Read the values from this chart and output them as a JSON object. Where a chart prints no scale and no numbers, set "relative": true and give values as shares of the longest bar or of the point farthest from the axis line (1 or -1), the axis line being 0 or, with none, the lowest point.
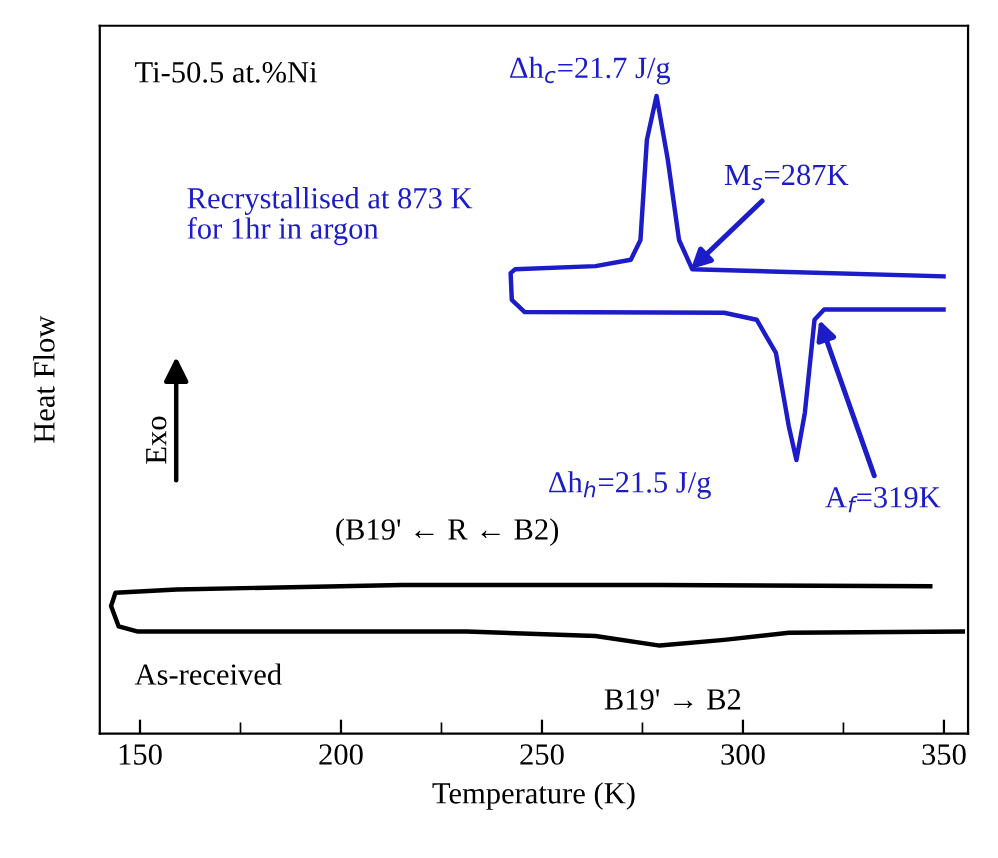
{
  "chart_data": {
    "type": "line",
    "title": "Ti-50.5 at.%Ni",
    "xlabel": "Temperature (K)",
    "ylabel": "Heat Flow",
    "relative": true,
    "xlim": [
      140,
      356
    ],
    "xticks": [
      150,
      {
        "value": 175,
        "label": null
      },
      200,
      {
        "value": 225,
        "label": null
      },
      250,
      {
        "value": 275,
        "label": null
      },
      300,
      {
        "value": 325,
        "label": null
      },
      350
    ],
    "tick_labels": "x",
    "grid": false,
    "legend": false,
    "marker": "none",
    "line_style": "solid",
    "series": [
      {
        "name": "Recrystallised at 873 K\nfor 1hr in argon",
        "color": "#1c1cc8",
        "x": [
          349.9,
          287.4,
          284.1,
          281.3,
          278.5,
          276.1,
          274.5,
          272.1,
          263.3,
          243.3,
          242.2,
          242.5,
          245.7,
          295.3,
          303.4,
          308.2,
          311.4,
          313.3,
          315.4,
          317.8,
          320.2,
          349.9
        ],
        "values": [
          0.717,
          0.728,
          0.774,
          0.9,
          1,
          0.931,
          0.774,
          0.743,
          0.733,
          0.728,
          0.722,
          0.68,
          0.661,
          0.66,
          0.649,
          0.597,
          0.482,
          0.429,
          0.503,
          0.649,
          0.665,
          0.665
        ]
      },
      {
        "name": "As-received",
        "color": "#000000",
        "x": [
          346.6,
          279.3,
          215.2,
          159.1,
          143.9,
          142.8,
          144.7,
          149.5,
          231.3,
          263.3,
          279.3,
          295.3,
          311.4,
          354.7
        ],
        "values": [
          0.231,
          0.233,
          0.233,
          0.226,
          0.221,
          0.2,
          0.168,
          0.16,
          0.16,
          0.153,
          0.138,
          0.147,
          0.158,
          0.16
        ]
      }
    ],
    "annotations": [
      "Exo",
      "(B19' ← R ← B2)",
      "B19' → B2",
      {
        "text": "Δh$_{c}$=21.7 J/g",
        "x": 278.5,
        "y": 1
      },
      {
        "text": "Δh$_{h}$=21.5 J/g",
        "x": 313.3,
        "y": 0.429
      },
      {
        "text": "M$_{s}$=287K",
        "x": 287,
        "y": 0.728
      },
      {
        "text": "A$_{f}$=319K",
        "x": 319,
        "y": 0.649
      }
    ]
  }
}
